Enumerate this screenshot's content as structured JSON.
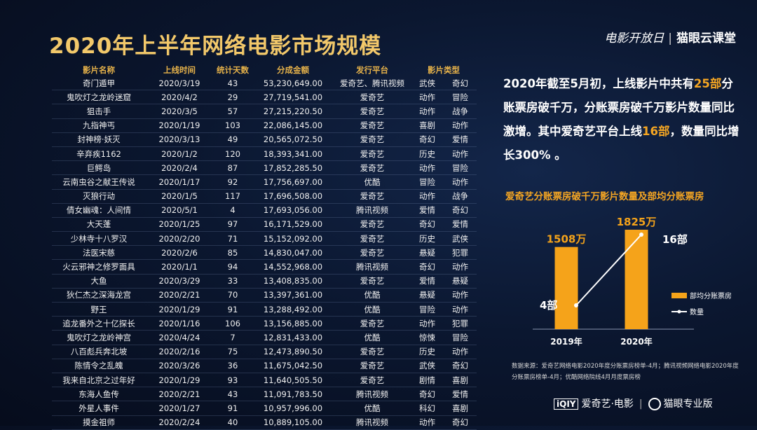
{
  "title": "2020年上半年网络电影市场规模",
  "logo_top": {
    "left": "电影开放日",
    "right": "猫眼云课堂"
  },
  "table": {
    "headers": [
      "影片名称",
      "上线时间",
      "统计天数",
      "分成金额",
      "发行平台",
      "影片类型"
    ],
    "rows": [
      [
        "奇门遁甲",
        "2020/3/19",
        "43",
        "53,230,649.00",
        "爱奇艺、腾讯视频",
        "武侠",
        "奇幻"
      ],
      [
        "鬼吹灯之龙岭迷窟",
        "2020/4/2",
        "29",
        "27,719,541.00",
        "爱奇艺",
        "动作",
        "冒险"
      ],
      [
        "狙击手",
        "2020/3/5",
        "57",
        "27,215,220.50",
        "爱奇艺",
        "动作",
        "战争"
      ],
      [
        "九指神丐",
        "2020/1/19",
        "103",
        "22,086,145.00",
        "爱奇艺",
        "喜剧",
        "动作"
      ],
      [
        "封神榜·妖灭",
        "2020/3/13",
        "49",
        "20,565,072.50",
        "爱奇艺",
        "奇幻",
        "爱情"
      ],
      [
        "辛弃疾1162",
        "2020/1/2",
        "120",
        "18,393,341.00",
        "爱奇艺",
        "历史",
        "动作"
      ],
      [
        "巨鳄岛",
        "2020/2/4",
        "87",
        "17,852,285.50",
        "爱奇艺",
        "动作",
        "冒险"
      ],
      [
        "云南虫谷之献王传说",
        "2020/1/17",
        "92",
        "17,756,697.00",
        "优酷",
        "冒险",
        "动作"
      ],
      [
        "灭狼行动",
        "2020/1/5",
        "117",
        "17,696,508.00",
        "爱奇艺",
        "动作",
        "战争"
      ],
      [
        "倩女幽魂：人间情",
        "2020/5/1",
        "4",
        "17,693,056.00",
        "腾讯视频",
        "爱情",
        "奇幻"
      ],
      [
        "大天蓬",
        "2020/1/25",
        "97",
        "16,171,529.00",
        "爱奇艺",
        "奇幻",
        "爱情"
      ],
      [
        "少林寺十八罗汉",
        "2020/2/20",
        "71",
        "15,152,092.00",
        "爱奇艺",
        "历史",
        "武侠"
      ],
      [
        "法医宋慈",
        "2020/2/6",
        "85",
        "14,830,047.00",
        "爱奇艺",
        "悬疑",
        "犯罪"
      ],
      [
        "火云邪神之修罗面具",
        "2020/1/1",
        "94",
        "14,552,968.00",
        "腾讯视频",
        "奇幻",
        "动作"
      ],
      [
        "大鱼",
        "2020/3/29",
        "33",
        "13,408,835.00",
        "爱奇艺",
        "爱情",
        "悬疑"
      ],
      [
        "狄仁杰之深海龙宫",
        "2020/2/21",
        "70",
        "13,397,361.00",
        "优酷",
        "悬疑",
        "动作"
      ],
      [
        "野王",
        "2020/1/29",
        "91",
        "13,288,492.00",
        "优酷",
        "冒险",
        "动作"
      ],
      [
        "追龙番外之十亿探长",
        "2020/1/16",
        "106",
        "13,156,885.00",
        "爱奇艺",
        "动作",
        "犯罪"
      ],
      [
        "鬼吹灯之龙岭神宫",
        "2020/4/24",
        "7",
        "12,831,433.00",
        "优酷",
        "惊悚",
        "冒险"
      ],
      [
        "八百彪兵奔北坡",
        "2020/2/16",
        "75",
        "12,473,890.50",
        "爱奇艺",
        "历史",
        "动作"
      ],
      [
        "陈情令之乱魄",
        "2020/3/26",
        "36",
        "11,675,042.50",
        "爱奇艺",
        "武侠",
        "奇幻"
      ],
      [
        "我来自北京之过年好",
        "2020/1/29",
        "93",
        "11,640,505.50",
        "爱奇艺",
        "剧情",
        "喜剧"
      ],
      [
        "东海人鱼传",
        "2020/2/21",
        "43",
        "11,091,783.50",
        "腾讯视频",
        "奇幻",
        "爱情"
      ],
      [
        "外星人事件",
        "2020/1/27",
        "91",
        "10,957,996.00",
        "优酷",
        "科幻",
        "喜剧"
      ],
      [
        "摸金祖师",
        "2020/2/24",
        "40",
        "10,889,105.00",
        "腾讯视频",
        "动作",
        "奇幻"
      ]
    ]
  },
  "summary": {
    "p1": "2020年截至5月初，上线影片中共有",
    "n1": "25部",
    "p2": "分账票房破千万，分账票房破千万影片数量同比激增。其中爱奇艺平台上线",
    "n2": "16部",
    "p3": "，数量同比增长300% 。"
  },
  "chart_title": "爱奇艺分账票房破千万影片数量及部均分账票房",
  "chart_data": {
    "type": "bar",
    "categories": [
      "2019年",
      "2020年"
    ],
    "series": [
      {
        "name": "部均分账票房",
        "kind": "bar",
        "values": [
          1508,
          1825
        ],
        "labels": [
          "1508万",
          "1825万"
        ],
        "color": "#f5a31a"
      },
      {
        "name": "数量",
        "kind": "line",
        "values": [
          4,
          16
        ],
        "labels": [
          "4部",
          "16部"
        ],
        "color": "#ffffff"
      }
    ]
  },
  "source": "数据来源：爱奇艺网络电影2020年度分账票房榜单-4月；腾讯视频网络电影2020年度分账票房榜单-4月；优酷网络院线4月月度票房榜",
  "logo_bottom": {
    "left_box": "iQIY",
    "left": "爱奇艺·电影",
    "right": "猫眼专业版"
  }
}
